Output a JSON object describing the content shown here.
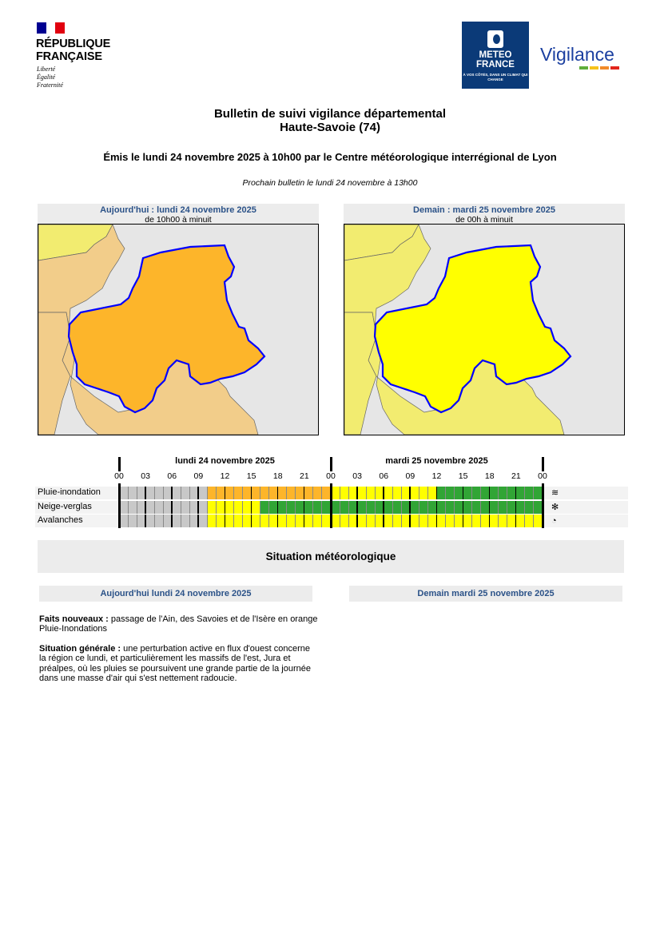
{
  "header": {
    "republique": [
      "RÉPUBLIQUE",
      "FRANÇAISE"
    ],
    "motto": [
      "Liberté",
      "Égalité",
      "Fraternité"
    ],
    "meteo_france": [
      "METEO",
      "FRANCE"
    ],
    "meteo_slogan": "À VOS CÔTÉS, DANS UN CLIMAT QUI CHANGE",
    "vigilance": "Vigilance"
  },
  "bulletin": {
    "title": "Bulletin de suivi vigilance départemental",
    "department": "Haute-Savoie (74)",
    "issued": "Émis le lundi 24 novembre 2025 à 10h00 par le Centre météorologique interrégional de Lyon",
    "next": "Prochain bulletin le lundi 24 novembre à 13h00"
  },
  "maps": [
    {
      "day": "Aujourd'hui : lundi 24 novembre 2025",
      "hours": "de 10h00 à minuit",
      "level_color": "#fdb52a"
    },
    {
      "day": "Demain : mardi 25 novembre 2025",
      "hours": "de 00h à minuit",
      "level_color": "#ffff00"
    }
  ],
  "timeline": {
    "days": [
      "lundi 24 novembre 2025",
      "mardi 25 novembre 2025"
    ],
    "hour_labels": [
      "00",
      "03",
      "06",
      "09",
      "12",
      "15",
      "18",
      "21",
      "00",
      "03",
      "06",
      "09",
      "12",
      "15",
      "18",
      "21",
      "00"
    ],
    "colors": {
      "grey": "#c8c8c8",
      "green": "#31a535",
      "yellow": "#ffff00",
      "orange": "#fdb52a"
    },
    "rows": [
      {
        "label": "Pluie-inondation",
        "icon": "rain-flood-icon",
        "segments": [
          [
            0,
            10,
            "grey"
          ],
          [
            10,
            24,
            "orange"
          ],
          [
            24,
            36,
            "yellow"
          ],
          [
            36,
            48,
            "green"
          ]
        ]
      },
      {
        "label": "Neige-verglas",
        "icon": "snow-ice-icon",
        "segments": [
          [
            0,
            10,
            "grey"
          ],
          [
            10,
            16,
            "yellow"
          ],
          [
            16,
            48,
            "green"
          ]
        ]
      },
      {
        "label": "Avalanches",
        "icon": "avalanche-icon",
        "segments": [
          [
            0,
            10,
            "grey"
          ],
          [
            10,
            48,
            "yellow"
          ]
        ]
      }
    ]
  },
  "situation": {
    "title": "Situation météorologique",
    "today": "Aujourd'hui lundi 24 novembre 2025",
    "tomorrow": "Demain mardi 25 novembre 2025",
    "faits_label": "Faits nouveaux :",
    "faits_text": " passage de l'Ain, des Savoies et de l'Isère en orange Pluie-Inondations",
    "generale_label": "Situation générale :",
    "generale_text": " une perturbation active en flux d'ouest concerne la région ce lundi, et particulièrement les massifs de l'est, Jura et préalpes, où les pluies se poursuivent une grande partie de la journée dans une masse d'air qui s'est nettement radoucie."
  }
}
